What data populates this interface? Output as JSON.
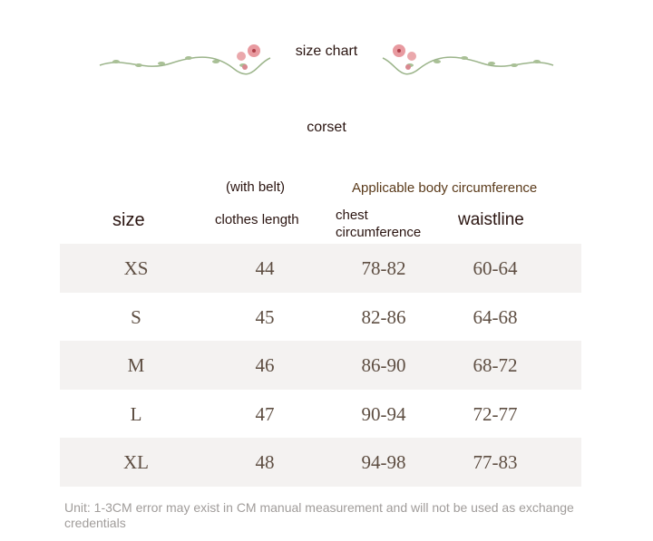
{
  "header": {
    "title": "size chart",
    "subtitle": "corset"
  },
  "colors": {
    "text_dark": "#2a1410",
    "text_brown": "#5a3a1a",
    "values": "#5e4e42",
    "row_shade": "#f4f2f1",
    "note": "#a09c9a",
    "flower": "#e89aa0",
    "leaf": "#9bb48a"
  },
  "table": {
    "headers": {
      "size": "size",
      "length_note": "(with belt)",
      "length": "clothes length",
      "group": "Applicable body circumference",
      "chest": "chest circumference",
      "waist": "waistline"
    },
    "rows": [
      {
        "size": "XS",
        "length": "44",
        "chest": "78-82",
        "waist": "60-64"
      },
      {
        "size": "S",
        "length": "45",
        "chest": "82-86",
        "waist": "64-68"
      },
      {
        "size": "M",
        "length": "46",
        "chest": "86-90",
        "waist": "68-72"
      },
      {
        "size": "L",
        "length": "47",
        "chest": "90-94",
        "waist": "72-77"
      },
      {
        "size": "XL",
        "length": "48",
        "chest": "94-98",
        "waist": "77-83"
      }
    ]
  },
  "note": "Unit: 1-3CM error may exist in CM manual measurement and will not be used as exchange credentials"
}
